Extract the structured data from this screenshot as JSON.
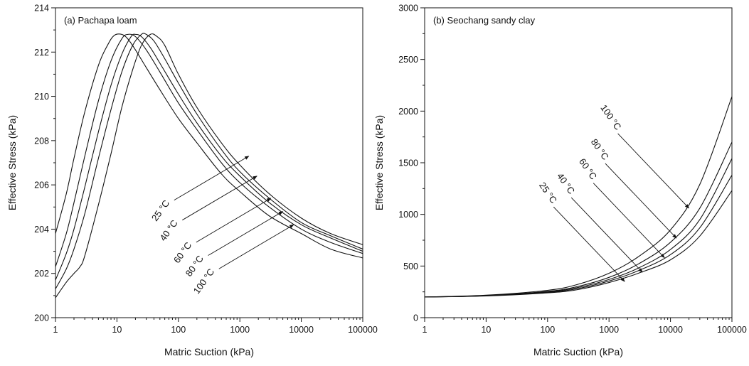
{
  "chart_data": [
    {
      "type": "line",
      "panel": "a",
      "title": "(a) Pachapa loam",
      "xlabel": "Matric Suction (kPa)",
      "ylabel": "Effective Stress (kPa)",
      "xscale": "log",
      "xlim": [
        1,
        100000
      ],
      "ylim": [
        200,
        214
      ],
      "x_ticks": [
        "1",
        "10",
        "100",
        "1000",
        "10000",
        "100000"
      ],
      "y_ticks": [
        "200",
        "202",
        "204",
        "206",
        "208",
        "210",
        "212",
        "214"
      ],
      "grid": false,
      "legend": "none",
      "series": [
        {
          "name": "25 °C",
          "x": [
            1,
            1.5,
            2,
            3,
            5,
            7,
            9,
            12,
            15,
            20,
            30,
            50,
            100,
            200,
            500,
            1000,
            3000,
            10000,
            30000,
            100000
          ],
          "y": [
            203.8,
            205.6,
            207.2,
            209.3,
            211.4,
            212.3,
            212.75,
            212.8,
            212.6,
            212.1,
            211.3,
            210.3,
            209.0,
            207.9,
            206.5,
            205.7,
            204.6,
            203.8,
            203.1,
            202.7
          ]
        },
        {
          "name": "40 °C",
          "x": [
            1,
            1.5,
            2,
            3,
            5,
            8,
            12,
            15,
            20,
            30,
            50,
            100,
            200,
            500,
            1000,
            3000,
            10000,
            30000,
            100000
          ],
          "y": [
            202.3,
            203.8,
            205.2,
            207.3,
            209.8,
            211.6,
            212.6,
            212.8,
            212.7,
            212.1,
            211.1,
            209.7,
            208.5,
            207.0,
            206.1,
            205.0,
            204.0,
            203.4,
            202.9
          ]
        },
        {
          "name": "60 °C",
          "x": [
            1,
            1.5,
            2,
            3,
            5,
            8,
            12,
            17,
            20,
            25,
            35,
            50,
            100,
            200,
            500,
            1000,
            3000,
            10000,
            30000,
            100000
          ],
          "y": [
            201.7,
            202.9,
            204.0,
            205.9,
            208.4,
            210.5,
            211.9,
            212.7,
            212.8,
            212.7,
            212.2,
            211.5,
            210.1,
            208.8,
            207.3,
            206.4,
            205.2,
            204.2,
            203.6,
            203.0
          ]
        },
        {
          "name": "80 °C",
          "x": [
            1,
            1.5,
            2,
            3,
            5,
            8,
            12,
            18,
            25,
            30,
            40,
            60,
            100,
            200,
            500,
            1000,
            3000,
            10000,
            30000,
            100000
          ],
          "y": [
            201.3,
            202.2,
            203.1,
            204.7,
            207.2,
            209.4,
            211.1,
            212.3,
            212.8,
            212.8,
            212.5,
            211.7,
            210.6,
            209.2,
            207.6,
            206.6,
            205.4,
            204.3,
            203.7,
            203.1
          ]
        },
        {
          "name": "100 °C",
          "x": [
            1,
            1.5,
            2,
            2.5,
            3,
            5,
            8,
            12,
            18,
            25,
            35,
            45,
            60,
            100,
            200,
            500,
            1000,
            3000,
            10000,
            30000,
            100000
          ],
          "y": [
            200.9,
            201.6,
            202.0,
            202.3,
            202.8,
            205.1,
            207.4,
            209.5,
            211.2,
            212.3,
            212.8,
            212.7,
            212.3,
            211.0,
            209.5,
            207.9,
            206.9,
            205.6,
            204.5,
            203.8,
            203.3
          ]
        }
      ],
      "annotations": [
        {
          "text": "25 °C",
          "x": 1400,
          "y": 207.3
        },
        {
          "text": "40 °C",
          "x": 1900,
          "y": 206.4
        },
        {
          "text": "60 °C",
          "x": 3200,
          "y": 205.4
        },
        {
          "text": "80 °C",
          "x": 5000,
          "y": 204.8
        },
        {
          "text": "100 °C",
          "x": 7500,
          "y": 204.2
        }
      ]
    },
    {
      "type": "line",
      "panel": "b",
      "title": "(b) Seochang sandy clay",
      "xlabel": "Matric Suction (kPa)",
      "ylabel": "Effective Stress (kPa)",
      "xscale": "log",
      "xlim": [
        1,
        100000
      ],
      "ylim": [
        0,
        3000
      ],
      "x_ticks": [
        "1",
        "10",
        "100",
        "1000",
        "10000",
        "100000"
      ],
      "y_ticks": [
        "0",
        "500",
        "1000",
        "1500",
        "2000",
        "2500",
        "3000"
      ],
      "grid": false,
      "legend": "none",
      "series": [
        {
          "name": "25 °C",
          "x": [
            1,
            10,
            100,
            300,
            1000,
            3000,
            10000,
            30000,
            100000
          ],
          "y": [
            200,
            210,
            240,
            270,
            340,
            430,
            560,
            790,
            1230
          ]
        },
        {
          "name": "40 °C",
          "x": [
            1,
            10,
            100,
            300,
            1000,
            3000,
            10000,
            30000,
            100000
          ],
          "y": [
            200,
            212,
            245,
            280,
            355,
            455,
            610,
            870,
            1380
          ]
        },
        {
          "name": "60 °C",
          "x": [
            1,
            10,
            100,
            300,
            1000,
            3000,
            10000,
            30000,
            100000
          ],
          "y": [
            200,
            213,
            250,
            290,
            370,
            480,
            660,
            950,
            1540
          ]
        },
        {
          "name": "80 °C",
          "x": [
            1,
            10,
            100,
            300,
            1000,
            3000,
            10000,
            30000,
            100000
          ],
          "y": [
            200,
            215,
            255,
            300,
            390,
            520,
            730,
            1060,
            1700
          ]
        },
        {
          "name": "100 °C",
          "x": [
            1,
            10,
            100,
            300,
            1000,
            3000,
            10000,
            30000,
            100000
          ],
          "y": [
            200,
            218,
            265,
            320,
            430,
            590,
            850,
            1290,
            2140
          ]
        }
      ],
      "annotations": [
        {
          "text": "25 °C",
          "x": 1800,
          "y": 350
        },
        {
          "text": "40 °C",
          "x": 3500,
          "y": 440
        },
        {
          "text": "60 °C",
          "x": 8000,
          "y": 580
        },
        {
          "text": "80 °C",
          "x": 12500,
          "y": 770
        },
        {
          "text": "100 °C",
          "x": 20000,
          "y": 1060
        }
      ]
    }
  ]
}
